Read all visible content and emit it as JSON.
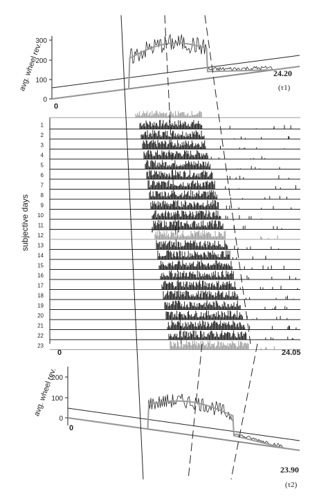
{
  "chart_data": [
    {
      "type": "line",
      "position": "top",
      "ylabel": "avg. wheel rev.",
      "yticks": [
        "300",
        "200",
        "100",
        "0"
      ],
      "xtick_start": "0",
      "period_value": "24.20",
      "period_symbol": "(τ1)"
    },
    {
      "type": "actogram",
      "ylabel": "subjective days",
      "days": [
        "1",
        "2",
        "3",
        "4",
        "5",
        "6",
        "7",
        "8",
        "9",
        "10",
        "11",
        "12",
        "13",
        "14",
        "15",
        "16",
        "17",
        "18",
        "19",
        "20",
        "21",
        "22",
        "23"
      ],
      "xtick_start": "0",
      "xtick_end": "24.05"
    },
    {
      "type": "line",
      "position": "bottom",
      "ylabel": "avg. wheel rev.",
      "yticks": [
        "200",
        "100",
        "0"
      ],
      "xtick_start": "0",
      "period_value": "23.90",
      "period_symbol": "(τ2)"
    }
  ],
  "colors": {
    "ink": "#1a1a1a",
    "grey": "#9a9a9a",
    "baseline_grey": "#8c8c8c"
  }
}
